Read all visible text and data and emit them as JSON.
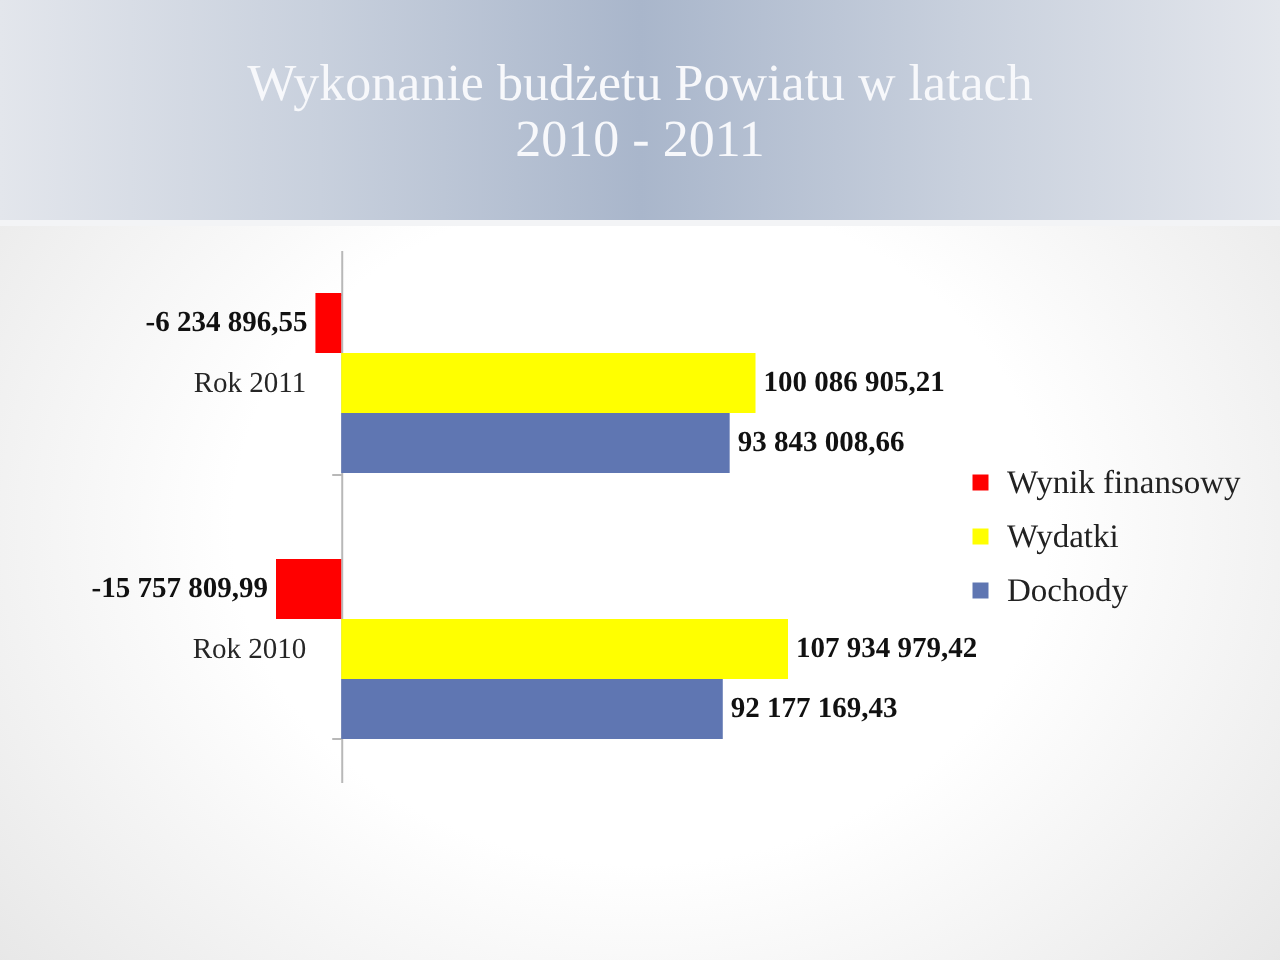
{
  "chart_data": {
    "type": "bar",
    "orientation": "horizontal",
    "title": "Wykonanie budżetu Powiatu w latach\n2010 - 2011",
    "categories": [
      "Rok 2011",
      "Rok 2010"
    ],
    "series": [
      {
        "name": "Wynik finansowy",
        "color": "#ff0000",
        "values": [
          -6234896.55,
          -15757809.99
        ],
        "value_labels": [
          "-6 234 896,55",
          "-15 757 809,99"
        ]
      },
      {
        "name": "Wydatki",
        "color": "#ffff00",
        "values": [
          100086905.21,
          107934979.42
        ],
        "value_labels": [
          "100 086 905,21",
          "107 934 979,42"
        ]
      },
      {
        "name": "Dochody",
        "color": "#5f76b2",
        "values": [
          93843008.66,
          92177169.43
        ],
        "value_labels": [
          "93 843 008,66",
          "92 177 169,43"
        ]
      }
    ],
    "legend": "right"
  }
}
